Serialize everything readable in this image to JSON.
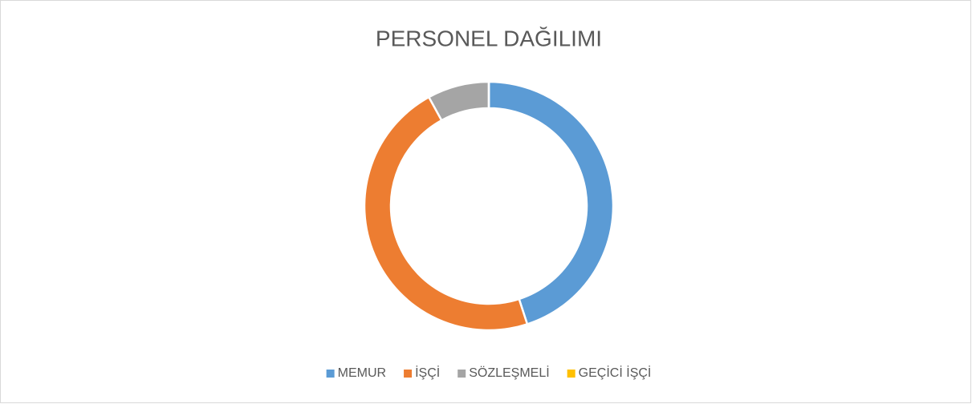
{
  "chart_data": {
    "type": "donut",
    "title": "PERSONEL DAĞILIMI",
    "categories": [
      "MEMUR",
      "İŞÇİ",
      "SÖZLEŞMELİ",
      "GEÇİCİ İŞÇİ"
    ],
    "values": [
      45,
      47,
      8,
      0
    ],
    "colors": [
      "#5b9bd5",
      "#ed7d31",
      "#a5a5a5",
      "#ffc000"
    ],
    "legend": "bottom"
  }
}
